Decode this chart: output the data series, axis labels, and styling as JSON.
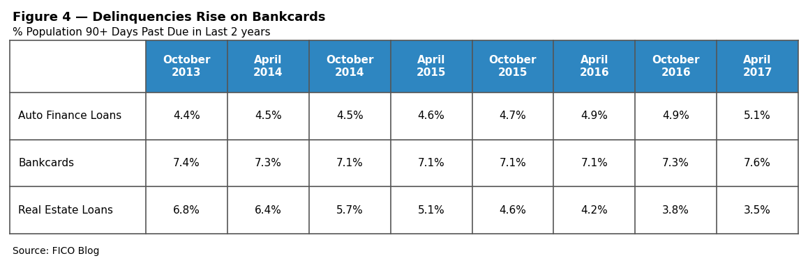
{
  "title": "Figure 4 — Delinquencies Rise on Bankcards",
  "subtitle": "% Population 90+ Days Past Due in Last 2 years",
  "source": "Source: FICO Blog",
  "header_bg_color": "#2E86C1",
  "header_text_color": "#FFFFFF",
  "cell_text_color": "#000000",
  "table_border_color": "#555555",
  "background_color": "#FFFFFF",
  "columns": [
    "October\n2013",
    "April\n2014",
    "October\n2014",
    "April\n2015",
    "October\n2015",
    "April\n2016",
    "October\n2016",
    "April\n2017"
  ],
  "rows": [
    {
      "label": "Auto Finance Loans",
      "values": [
        "4.4%",
        "4.5%",
        "4.5%",
        "4.6%",
        "4.7%",
        "4.9%",
        "4.9%",
        "5.1%"
      ]
    },
    {
      "label": "Bankcards",
      "values": [
        "7.4%",
        "7.3%",
        "7.1%",
        "7.1%",
        "7.1%",
        "7.1%",
        "7.3%",
        "7.6%"
      ]
    },
    {
      "label": "Real Estate Loans",
      "values": [
        "6.8%",
        "6.4%",
        "5.7%",
        "5.1%",
        "4.6%",
        "4.2%",
        "3.8%",
        "3.5%"
      ]
    }
  ],
  "title_fontsize": 13,
  "subtitle_fontsize": 11,
  "header_fontsize": 11,
  "cell_fontsize": 11,
  "label_fontsize": 11,
  "source_fontsize": 10
}
